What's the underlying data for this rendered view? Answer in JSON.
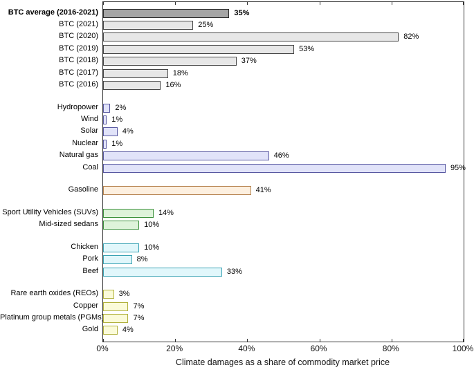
{
  "chart_data": {
    "type": "bar",
    "orientation": "horizontal",
    "xlabel": "Climate damages as a share of commodity market price",
    "xlim": [
      0,
      100
    ],
    "grid": false,
    "legend": "none",
    "x_ticks": [
      {
        "label": "0%",
        "value": 0
      },
      {
        "label": "20%",
        "value": 20
      },
      {
        "label": "40%",
        "value": 40
      },
      {
        "label": "60%",
        "value": 60
      },
      {
        "label": "80%",
        "value": 80
      },
      {
        "label": "100%",
        "value": 100
      }
    ],
    "groups": [
      {
        "name": "bitcoin",
        "fill": "#e7e7e7",
        "stroke": "#454545",
        "bars": [
          {
            "label": "BTC average (2016-2021)",
            "value": 35,
            "value_label": "35%",
            "bold": true,
            "fill": "#a5a5a5",
            "stroke": "#2b2b2b"
          },
          {
            "label": "BTC (2021)",
            "value": 25,
            "value_label": "25%"
          },
          {
            "label": "BTC (2020)",
            "value": 82,
            "value_label": "82%"
          },
          {
            "label": "BTC (2019)",
            "value": 53,
            "value_label": "53%"
          },
          {
            "label": "BTC (2018)",
            "value": 37,
            "value_label": "37%"
          },
          {
            "label": "BTC (2017)",
            "value": 18,
            "value_label": "18%"
          },
          {
            "label": "BTC (2016)",
            "value": 16,
            "value_label": "16%"
          }
        ]
      },
      {
        "name": "electricity",
        "fill": "#e1e3f9",
        "stroke": "#5757a1",
        "bars": [
          {
            "label": "Hydropower",
            "value": 2,
            "value_label": "2%"
          },
          {
            "label": "Wind",
            "value": 1,
            "value_label": "1%"
          },
          {
            "label": "Solar",
            "value": 4,
            "value_label": "4%"
          },
          {
            "label": "Nuclear",
            "value": 1,
            "value_label": "1%"
          },
          {
            "label": "Natural gas",
            "value": 46,
            "value_label": "46%"
          },
          {
            "label": "Coal",
            "value": 95,
            "value_label": "95%"
          }
        ]
      },
      {
        "name": "fuel",
        "fill": "#fdf0e0",
        "stroke": "#b5824e",
        "bars": [
          {
            "label": "Gasoline",
            "value": 41,
            "value_label": "41%"
          }
        ]
      },
      {
        "name": "vehicles",
        "fill": "#def3da",
        "stroke": "#3c913c",
        "bars": [
          {
            "label": "Sport Utility Vehicles (SUVs)",
            "value": 14,
            "value_label": "14%"
          },
          {
            "label": "Mid-sized sedans",
            "value": 10,
            "value_label": "10%"
          }
        ]
      },
      {
        "name": "meat",
        "fill": "#e1f7fb",
        "stroke": "#3aa3b4",
        "bars": [
          {
            "label": "Chicken",
            "value": 10,
            "value_label": "10%"
          },
          {
            "label": "Pork",
            "value": 8,
            "value_label": "8%"
          },
          {
            "label": "Beef",
            "value": 33,
            "value_label": "33%"
          }
        ]
      },
      {
        "name": "metals",
        "fill": "#fbfbd9",
        "stroke": "#b1b13d",
        "bars": [
          {
            "label": "Rare earth oxides (REOs)",
            "value": 3,
            "value_label": "3%"
          },
          {
            "label": "Copper",
            "value": 7,
            "value_label": "7%"
          },
          {
            "label": "Platinum group metals (PGMs)",
            "value": 7,
            "value_label": "7%"
          },
          {
            "label": "Gold",
            "value": 4,
            "value_label": "4%"
          }
        ]
      }
    ]
  }
}
